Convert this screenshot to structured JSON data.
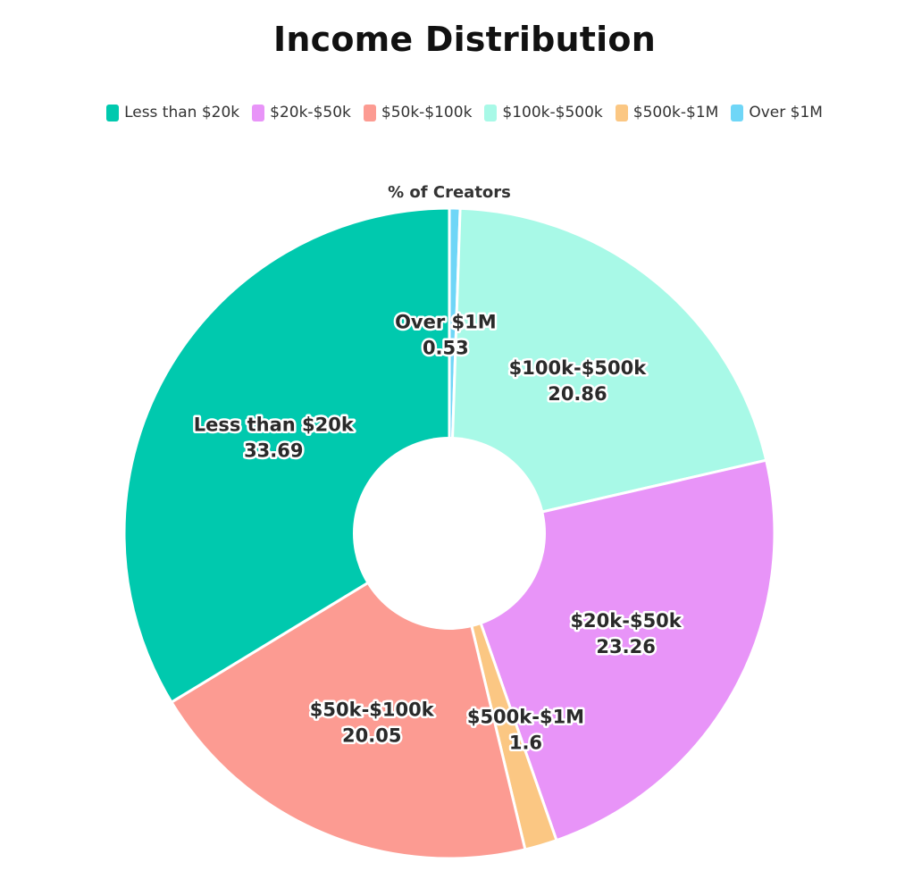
{
  "title": "Income Distribution",
  "chart_data": {
    "type": "pie",
    "title": "Income Distribution",
    "series_title": "% of Creators",
    "hole": true,
    "legend_position": "top-center",
    "categories": [
      "Less than $20k",
      "$20k-$50k",
      "$50k-$100k",
      "$100k-$500k",
      "$500k-$1M",
      "Over $1M"
    ],
    "values": [
      33.69,
      23.26,
      20.05,
      20.86,
      1.6,
      0.53
    ],
    "value_labels": [
      "33.69",
      "23.26",
      "20.05",
      "20.86",
      "1.6",
      "0.53"
    ],
    "colors": [
      "#00c9ae",
      "#e894f8",
      "#fc9b92",
      "#a8f9e7",
      "#fbc783",
      "#6fd6f7"
    ],
    "slice_order_clockwise": [
      "Over $1M",
      "$100k-$500k",
      "$20k-$50k",
      "$500k-$1M",
      "$50k-$100k",
      "Less than $20k"
    ]
  }
}
